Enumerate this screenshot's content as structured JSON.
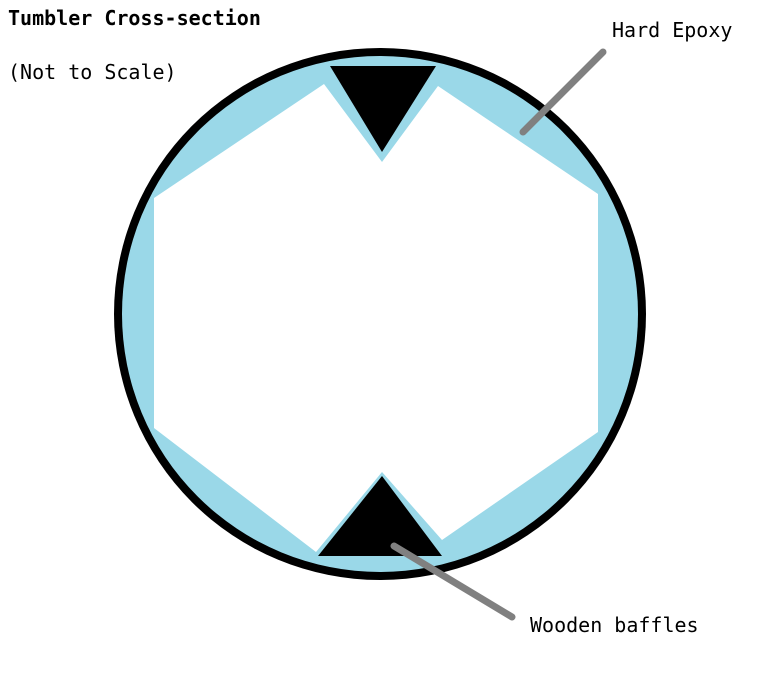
{
  "title": "Tumbler Cross-section",
  "subtitle": "(Not to Scale)",
  "labels": {
    "epoxy": "Hard Epoxy",
    "baffles": "Wooden baffles"
  },
  "colors": {
    "drum": "#000000",
    "epoxy": "#9ad8e8",
    "cavity": "#ffffff",
    "baffle": "#000000",
    "leader": "#808080"
  }
}
